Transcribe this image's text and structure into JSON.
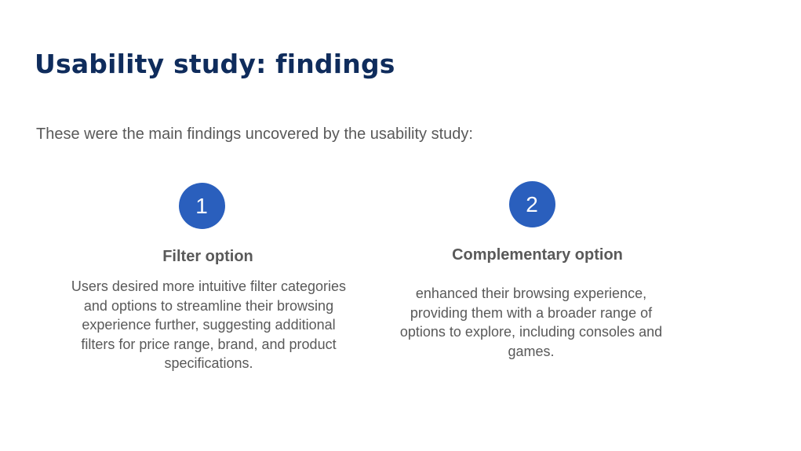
{
  "slide": {
    "title": "Usability study: findings",
    "intro": "These were the main findings uncovered by the usability study:"
  },
  "findings": [
    {
      "number": "1",
      "heading": "Filter option",
      "body": "Users desired more intuitive filter categories and options to streamline their browsing experience further, suggesting additional filters for price range, brand, and product specifications."
    },
    {
      "number": "2",
      "heading": "Complementary option",
      "body": "enhanced their browsing experience, providing them with a broader range of options to explore, including consoles and games."
    }
  ],
  "colors": {
    "title": "#0f2c5c",
    "text": "#595959",
    "badge": "#2a5fbd",
    "background": "#ffffff"
  }
}
